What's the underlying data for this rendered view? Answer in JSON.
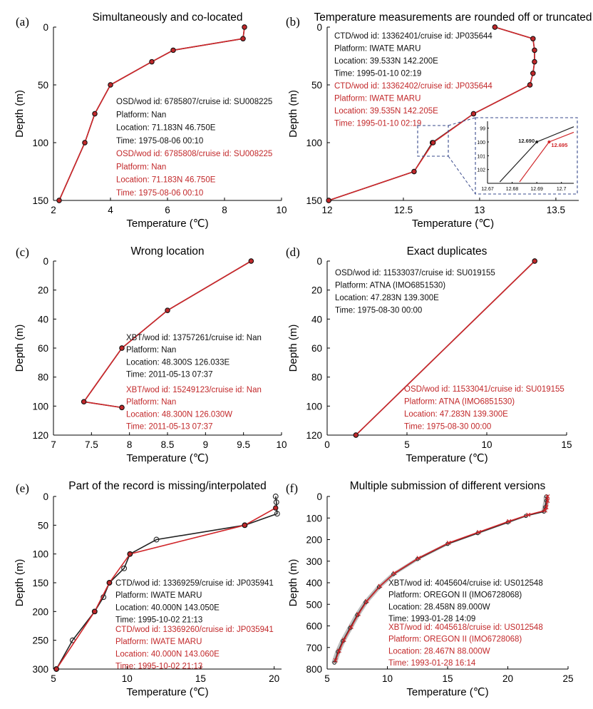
{
  "figure": {
    "colors": {
      "black": "#222222",
      "red": "#d0262a",
      "marker_fill_black": "#444444",
      "marker_fill_red": "#c0282a",
      "inset_border": "#3a4b8c",
      "f_shading": "#888888"
    }
  },
  "chart_data": [
    {
      "id": "a",
      "type": "line",
      "panel_label": "(a)",
      "title": "Simultaneously and co-located",
      "xlabel": "Temperature (℃)",
      "ylabel": "Depth (m)",
      "xlim": [
        2,
        10
      ],
      "ylim": [
        150,
        0
      ],
      "y_inverted": true,
      "xticks": [
        2,
        4,
        6,
        8,
        10
      ],
      "yticks": [
        0,
        50,
        100,
        150
      ],
      "series": [
        {
          "name": "OSD 6785807",
          "color": "black",
          "marker": "filled",
          "x": [
            8.7,
            8.65,
            6.2,
            5.45,
            4.0,
            3.45,
            3.1,
            2.2
          ],
          "y": [
            0,
            10,
            20,
            30,
            50,
            75,
            100,
            150
          ]
        },
        {
          "name": "OSD 6785808",
          "color": "red",
          "marker": "filled",
          "x": [
            8.7,
            8.65,
            6.2,
            5.45,
            4.0,
            3.45,
            3.1,
            2.2
          ],
          "y": [
            0,
            10,
            20,
            30,
            50,
            75,
            100,
            150
          ]
        }
      ],
      "annotations": [
        {
          "color": "black",
          "lines": [
            "OSD/wod id: 6785807/cruise id: SU008225",
            "Platform: Nan",
            "Location: 71.183N 46.750E",
            "Time: 1975-08-06 00:10"
          ]
        },
        {
          "color": "red",
          "lines": [
            "OSD/wod id: 6785808/cruise id: SU008225",
            "Platform: Nan",
            "Location: 71.183N 46.750E",
            "Time: 1975-08-06 00:10"
          ]
        }
      ]
    },
    {
      "id": "b",
      "type": "line",
      "panel_label": "(b)",
      "title": "Temperature measurements are rounded off or truncated",
      "xlabel": "Temperature (℃)",
      "ylabel": "Depth (m)",
      "xlim": [
        12,
        13.65
      ],
      "ylim": [
        150,
        0
      ],
      "y_inverted": true,
      "xticks": [
        12,
        12.5,
        13,
        13.5
      ],
      "yticks": [
        0,
        50,
        100,
        150
      ],
      "series": [
        {
          "name": "CTD 13362401",
          "color": "black",
          "marker": "filled",
          "x": [
            13.1,
            13.35,
            13.36,
            13.36,
            13.35,
            13.33,
            12.96,
            12.69,
            12.57,
            12.01
          ],
          "y": [
            0,
            10,
            20,
            30,
            40,
            50,
            75,
            100,
            125,
            150
          ]
        },
        {
          "name": "CTD 13362402",
          "color": "red",
          "marker": "filled",
          "x": [
            13.1,
            13.35,
            13.36,
            13.36,
            13.35,
            13.33,
            12.96,
            12.695,
            12.57,
            12.01
          ],
          "y": [
            0,
            10,
            20,
            30,
            40,
            50,
            75,
            100,
            125,
            150
          ]
        }
      ],
      "annotations": [
        {
          "color": "black",
          "lines": [
            "CTD/wod id: 13362401/cruise id: JP035644",
            "Platform: IWATE MARU",
            "Location: 39.533N 142.200E",
            "Time: 1995-01-10 02:19"
          ]
        },
        {
          "color": "red",
          "lines": [
            "CTD/wod id: 13362402/cruise id: JP035644",
            "Platform: IWATE MARU",
            "Location: 39.535N 142.205E",
            "Time: 1995-01-10 02:19"
          ]
        }
      ],
      "inset": {
        "xlim": [
          12.67,
          12.705
        ],
        "ylim": [
          103,
          98.5
        ],
        "xticks": [
          "12.67",
          "12.68",
          "12.69",
          "12.7"
        ],
        "yticks": [
          "99",
          "100",
          "101",
          "102"
        ],
        "labels": [
          {
            "text": "12.690",
            "color": "black"
          },
          {
            "text": "12.695",
            "color": "red"
          }
        ]
      }
    },
    {
      "id": "c",
      "type": "line",
      "panel_label": "(c)",
      "title": "Wrong location",
      "xlabel": "Temperature (℃)",
      "ylabel": "Depth (m)",
      "xlim": [
        7,
        10
      ],
      "ylim": [
        120,
        0
      ],
      "y_inverted": true,
      "xticks": [
        7,
        7.5,
        8,
        8.5,
        9,
        9.5,
        10
      ],
      "yticks": [
        0,
        20,
        40,
        60,
        80,
        100,
        120
      ],
      "series": [
        {
          "name": "XBT 13757261",
          "color": "black",
          "marker": "filled",
          "x": [
            9.6,
            8.5,
            7.9,
            7.4,
            7.9
          ],
          "y": [
            0,
            34,
            60,
            97,
            101
          ]
        },
        {
          "name": "XBT 15249123",
          "color": "red",
          "marker": "filled",
          "x": [
            9.6,
            8.5,
            7.9,
            7.4,
            7.9
          ],
          "y": [
            0,
            34,
            60,
            97,
            101
          ]
        }
      ],
      "annotations": [
        {
          "color": "black",
          "lines": [
            "XBT/wod id: 13757261/cruise id: Nan",
            "Platform: Nan",
            "Location: 48.300S 126.033E",
            "Time: 2011-05-13 07:37"
          ]
        },
        {
          "color": "red",
          "lines": [
            "XBT/wod id: 15249123/cruise id: Nan",
            "Platform: Nan",
            "Location: 48.300N 126.030W",
            "Time: 2011-05-13 07:37"
          ]
        }
      ]
    },
    {
      "id": "d",
      "type": "line",
      "panel_label": "(d)",
      "title": "Exact duplicates",
      "xlabel": "Temperature (℃)",
      "ylabel": "Depth (m)",
      "xlim": [
        0,
        15
      ],
      "ylim": [
        120,
        0
      ],
      "y_inverted": true,
      "xticks": [
        0,
        5,
        10,
        15
      ],
      "yticks": [
        0,
        20,
        40,
        60,
        80,
        100,
        120
      ],
      "series": [
        {
          "name": "OSD 11533037",
          "color": "black",
          "marker": "filled",
          "x": [
            13.0,
            1.8
          ],
          "y": [
            0,
            120
          ]
        },
        {
          "name": "OSD 11533041",
          "color": "red",
          "marker": "filled",
          "x": [
            13.0,
            1.8
          ],
          "y": [
            0,
            120
          ]
        }
      ],
      "annotations": [
        {
          "color": "black",
          "lines": [
            "OSD/wod id: 11533037/cruise id: SU019155",
            "Platform: ATNA (IMO6851530)",
            "Location: 47.283N 139.300E",
            "Time: 1975-08-30 00:00"
          ]
        },
        {
          "color": "red",
          "lines": [
            "OSD/wod id: 11533041/cruise id: SU019155",
            "Platform: ATNA (IMO6851530)",
            "Location: 47.283N 139.300E",
            "Time: 1975-08-30 00:00"
          ]
        }
      ]
    },
    {
      "id": "e",
      "type": "line",
      "panel_label": "(e)",
      "title": "Part of the record is missing/interpolated",
      "xlabel": "Temperature (℃)",
      "ylabel": "Depth (m)",
      "xlim": [
        5,
        20.5
      ],
      "ylim": [
        300,
        0
      ],
      "y_inverted": true,
      "xticks": [
        5,
        10,
        15,
        20
      ],
      "yticks": [
        0,
        50,
        100,
        150,
        200,
        250,
        300
      ],
      "series": [
        {
          "name": "CTD 13369259",
          "color": "black",
          "marker": "open",
          "x": [
            20.1,
            20.15,
            20.2,
            18.0,
            12.0,
            10.2,
            9.8,
            8.8,
            8.4,
            7.8,
            6.3,
            5.2
          ],
          "y": [
            0,
            10,
            30,
            50,
            75,
            100,
            125,
            150,
            175,
            200,
            250,
            300
          ]
        },
        {
          "name": "CTD 13369260",
          "color": "red",
          "marker": "filled",
          "x": [
            20.1,
            18.0,
            10.2,
            8.8,
            7.8,
            5.2
          ],
          "y": [
            20,
            50,
            100,
            150,
            200,
            300
          ]
        }
      ],
      "annotations": [
        {
          "color": "black",
          "lines": [
            "CTD/wod id: 13369259/cruise id: JP035941",
            "Platform: IWATE MARU",
            "Location: 40.000N 143.050E",
            "Time: 1995-10-02 21:13"
          ]
        },
        {
          "color": "red",
          "lines": [
            "CTD/wod id: 13369260/cruise id: JP035941",
            "Platform: IWATE MARU",
            "Location: 40.000N 143.060E",
            "Time: 1995-10-02 21:13"
          ]
        }
      ]
    },
    {
      "id": "f",
      "type": "line",
      "panel_label": "(f)",
      "title": "Multiple submission of different versions",
      "xlabel": "Temperature (℃)",
      "ylabel": "Depth (m)",
      "xlim": [
        5,
        25
      ],
      "ylim": [
        800,
        0
      ],
      "y_inverted": true,
      "xticks": [
        5,
        10,
        15,
        20,
        25
      ],
      "yticks": [
        0,
        100,
        200,
        300,
        400,
        500,
        600,
        700,
        800
      ],
      "series": [
        {
          "name": "XBT 4045604",
          "color": "black",
          "marker": "open",
          "x": [
            23.2,
            23.2,
            23.1,
            23.0,
            21.5,
            20.0,
            17.5,
            15.0,
            12.5,
            10.5,
            9.3,
            8.2,
            7.5,
            6.9,
            6.3,
            5.9,
            5.6
          ],
          "y": [
            0,
            20,
            50,
            70,
            90,
            120,
            170,
            220,
            290,
            360,
            420,
            490,
            550,
            610,
            670,
            720,
            770
          ]
        },
        {
          "name": "XBT 4045618",
          "color": "red",
          "marker": "cross",
          "x": [
            23.3,
            23.3,
            23.2,
            23.1,
            21.7,
            20.1,
            17.6,
            15.1,
            12.6,
            10.6,
            9.4,
            8.3,
            7.6,
            7.0,
            6.4,
            6.0,
            5.7
          ],
          "y": [
            0,
            20,
            50,
            65,
            85,
            115,
            165,
            215,
            285,
            355,
            415,
            485,
            545,
            605,
            665,
            715,
            760
          ]
        }
      ],
      "annotations": [
        {
          "color": "black",
          "lines": [
            "XBT/wod id: 4045604/cruise id: US012548",
            "Platform: OREGON II (IMO6728068)",
            "Location: 28.458N 89.000W",
            "Time: 1993-01-28 14:09"
          ]
        },
        {
          "color": "red",
          "lines": [
            "XBT/wod id: 4045618/cruise id: US012548",
            "Platform: OREGON II (IMO6728068)",
            "Location: 28.467N 88.000W",
            "Time: 1993-01-28 16:14"
          ]
        }
      ]
    }
  ]
}
